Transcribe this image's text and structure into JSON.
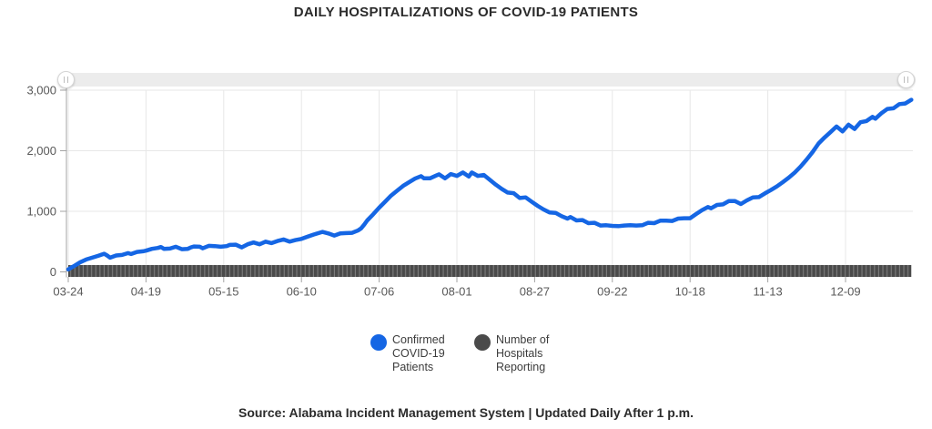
{
  "header": {
    "title": "DAILY HOSPITALIZATIONS OF COVID-19 PATIENTS"
  },
  "footer": {
    "source_note": "Source: Alabama Incident Management System | Updated Daily After 1 p.m."
  },
  "range_slider": {
    "handle_icon": "grip-double-bar-icon"
  },
  "legend": {
    "items": [
      {
        "label": "Confirmed COVID-19 Patients",
        "color": "#1566e4"
      },
      {
        "label": "Number of Hospitals Reporting",
        "color": "#4a4a4a"
      }
    ]
  },
  "colors": {
    "patients_line": "#1566e4",
    "hospitals_band": "#4a4a4a",
    "hospitals_band_gap": "#7d7d7d",
    "grid": "#e7e7e7",
    "axis": "#a3a3a3",
    "tick_label": "#585858",
    "title_text": "#2b2b2b",
    "slider_track": "#ececec"
  },
  "chart_data": {
    "type": "line",
    "title": "DAILY HOSPITALIZATIONS OF COVID-19 PATIENTS",
    "xlabel": "",
    "ylabel": "",
    "ylim": [
      0,
      3000
    ],
    "grid": true,
    "legend_position": "bottom",
    "y_ticks": [
      {
        "value": 0,
        "label": "0"
      },
      {
        "value": 1000,
        "label": "1,000"
      },
      {
        "value": 2000,
        "label": "2,000"
      },
      {
        "value": 3000,
        "label": "3,000"
      }
    ],
    "x_ticks": [
      {
        "day": 0,
        "label": "03-24"
      },
      {
        "day": 26,
        "label": "04-19"
      },
      {
        "day": 52,
        "label": "05-15"
      },
      {
        "day": 78,
        "label": "06-10"
      },
      {
        "day": 104,
        "label": "07-06"
      },
      {
        "day": 130,
        "label": "08-01"
      },
      {
        "day": 156,
        "label": "08-27"
      },
      {
        "day": 182,
        "label": "09-22"
      },
      {
        "day": 208,
        "label": "10-18"
      },
      {
        "day": 234,
        "label": "11-13"
      },
      {
        "day": 260,
        "label": "12-09"
      }
    ],
    "x_axis": {
      "unit": "days since 03-24 (2020)",
      "range_days": [
        0,
        282
      ]
    },
    "series": [
      {
        "name": "Confirmed COVID-19 Patients",
        "color": "#1566e4",
        "style": "thick-line",
        "points_day_value": [
          [
            0,
            40
          ],
          [
            2,
            100
          ],
          [
            4,
            160
          ],
          [
            6,
            205
          ],
          [
            8,
            235
          ],
          [
            10,
            265
          ],
          [
            12,
            300
          ],
          [
            13,
            270
          ],
          [
            14,
            235
          ],
          [
            16,
            270
          ],
          [
            18,
            280
          ],
          [
            20,
            310
          ],
          [
            21,
            295
          ],
          [
            23,
            330
          ],
          [
            25,
            340
          ],
          [
            26,
            350
          ],
          [
            28,
            380
          ],
          [
            30,
            395
          ],
          [
            31,
            410
          ],
          [
            32,
            380
          ],
          [
            34,
            385
          ],
          [
            36,
            415
          ],
          [
            38,
            375
          ],
          [
            40,
            380
          ],
          [
            41,
            405
          ],
          [
            42,
            420
          ],
          [
            44,
            415
          ],
          [
            45,
            390
          ],
          [
            47,
            430
          ],
          [
            49,
            425
          ],
          [
            51,
            415
          ],
          [
            53,
            425
          ],
          [
            54,
            445
          ],
          [
            56,
            450
          ],
          [
            58,
            405
          ],
          [
            60,
            455
          ],
          [
            62,
            485
          ],
          [
            64,
            455
          ],
          [
            66,
            500
          ],
          [
            68,
            475
          ],
          [
            70,
            510
          ],
          [
            72,
            535
          ],
          [
            74,
            500
          ],
          [
            76,
            525
          ],
          [
            78,
            545
          ],
          [
            80,
            580
          ],
          [
            82,
            615
          ],
          [
            84,
            645
          ],
          [
            85,
            660
          ],
          [
            87,
            635
          ],
          [
            89,
            600
          ],
          [
            91,
            635
          ],
          [
            93,
            640
          ],
          [
            95,
            645
          ],
          [
            97,
            685
          ],
          [
            98,
            720
          ],
          [
            99,
            780
          ],
          [
            100,
            850
          ],
          [
            102,
            950
          ],
          [
            104,
            1060
          ],
          [
            106,
            1160
          ],
          [
            108,
            1260
          ],
          [
            110,
            1340
          ],
          [
            112,
            1420
          ],
          [
            114,
            1480
          ],
          [
            116,
            1540
          ],
          [
            118,
            1580
          ],
          [
            119,
            1545
          ],
          [
            121,
            1545
          ],
          [
            123,
            1590
          ],
          [
            124,
            1610
          ],
          [
            126,
            1545
          ],
          [
            128,
            1615
          ],
          [
            130,
            1585
          ],
          [
            132,
            1640
          ],
          [
            134,
            1575
          ],
          [
            135,
            1640
          ],
          [
            137,
            1585
          ],
          [
            139,
            1600
          ],
          [
            141,
            1520
          ],
          [
            143,
            1440
          ],
          [
            145,
            1370
          ],
          [
            147,
            1310
          ],
          [
            149,
            1300
          ],
          [
            151,
            1220
          ],
          [
            153,
            1230
          ],
          [
            155,
            1160
          ],
          [
            157,
            1090
          ],
          [
            159,
            1030
          ],
          [
            161,
            980
          ],
          [
            163,
            975
          ],
          [
            165,
            920
          ],
          [
            167,
            880
          ],
          [
            168,
            905
          ],
          [
            170,
            850
          ],
          [
            172,
            855
          ],
          [
            174,
            805
          ],
          [
            176,
            810
          ],
          [
            178,
            765
          ],
          [
            180,
            770
          ],
          [
            182,
            760
          ],
          [
            184,
            755
          ],
          [
            186,
            765
          ],
          [
            188,
            770
          ],
          [
            190,
            765
          ],
          [
            192,
            770
          ],
          [
            194,
            810
          ],
          [
            196,
            805
          ],
          [
            198,
            845
          ],
          [
            200,
            845
          ],
          [
            202,
            840
          ],
          [
            204,
            880
          ],
          [
            206,
            885
          ],
          [
            208,
            885
          ],
          [
            210,
            955
          ],
          [
            212,
            1020
          ],
          [
            214,
            1070
          ],
          [
            215,
            1050
          ],
          [
            217,
            1105
          ],
          [
            219,
            1115
          ],
          [
            221,
            1170
          ],
          [
            223,
            1170
          ],
          [
            225,
            1120
          ],
          [
            227,
            1180
          ],
          [
            229,
            1230
          ],
          [
            231,
            1235
          ],
          [
            233,
            1295
          ],
          [
            235,
            1350
          ],
          [
            237,
            1410
          ],
          [
            239,
            1480
          ],
          [
            241,
            1555
          ],
          [
            243,
            1640
          ],
          [
            245,
            1740
          ],
          [
            247,
            1855
          ],
          [
            249,
            1980
          ],
          [
            251,
            2120
          ],
          [
            253,
            2220
          ],
          [
            255,
            2310
          ],
          [
            257,
            2400
          ],
          [
            259,
            2320
          ],
          [
            261,
            2430
          ],
          [
            263,
            2360
          ],
          [
            265,
            2470
          ],
          [
            267,
            2490
          ],
          [
            269,
            2560
          ],
          [
            270,
            2530
          ],
          [
            272,
            2620
          ],
          [
            274,
            2690
          ],
          [
            276,
            2700
          ],
          [
            278,
            2770
          ],
          [
            280,
            2780
          ],
          [
            282,
            2840
          ]
        ]
      },
      {
        "name": "Number of Hospitals Reporting",
        "color": "#4a4a4a",
        "style": "dense-vertical-tick-band",
        "approx_value": 100,
        "day_range": [
          0,
          282
        ]
      }
    ]
  }
}
